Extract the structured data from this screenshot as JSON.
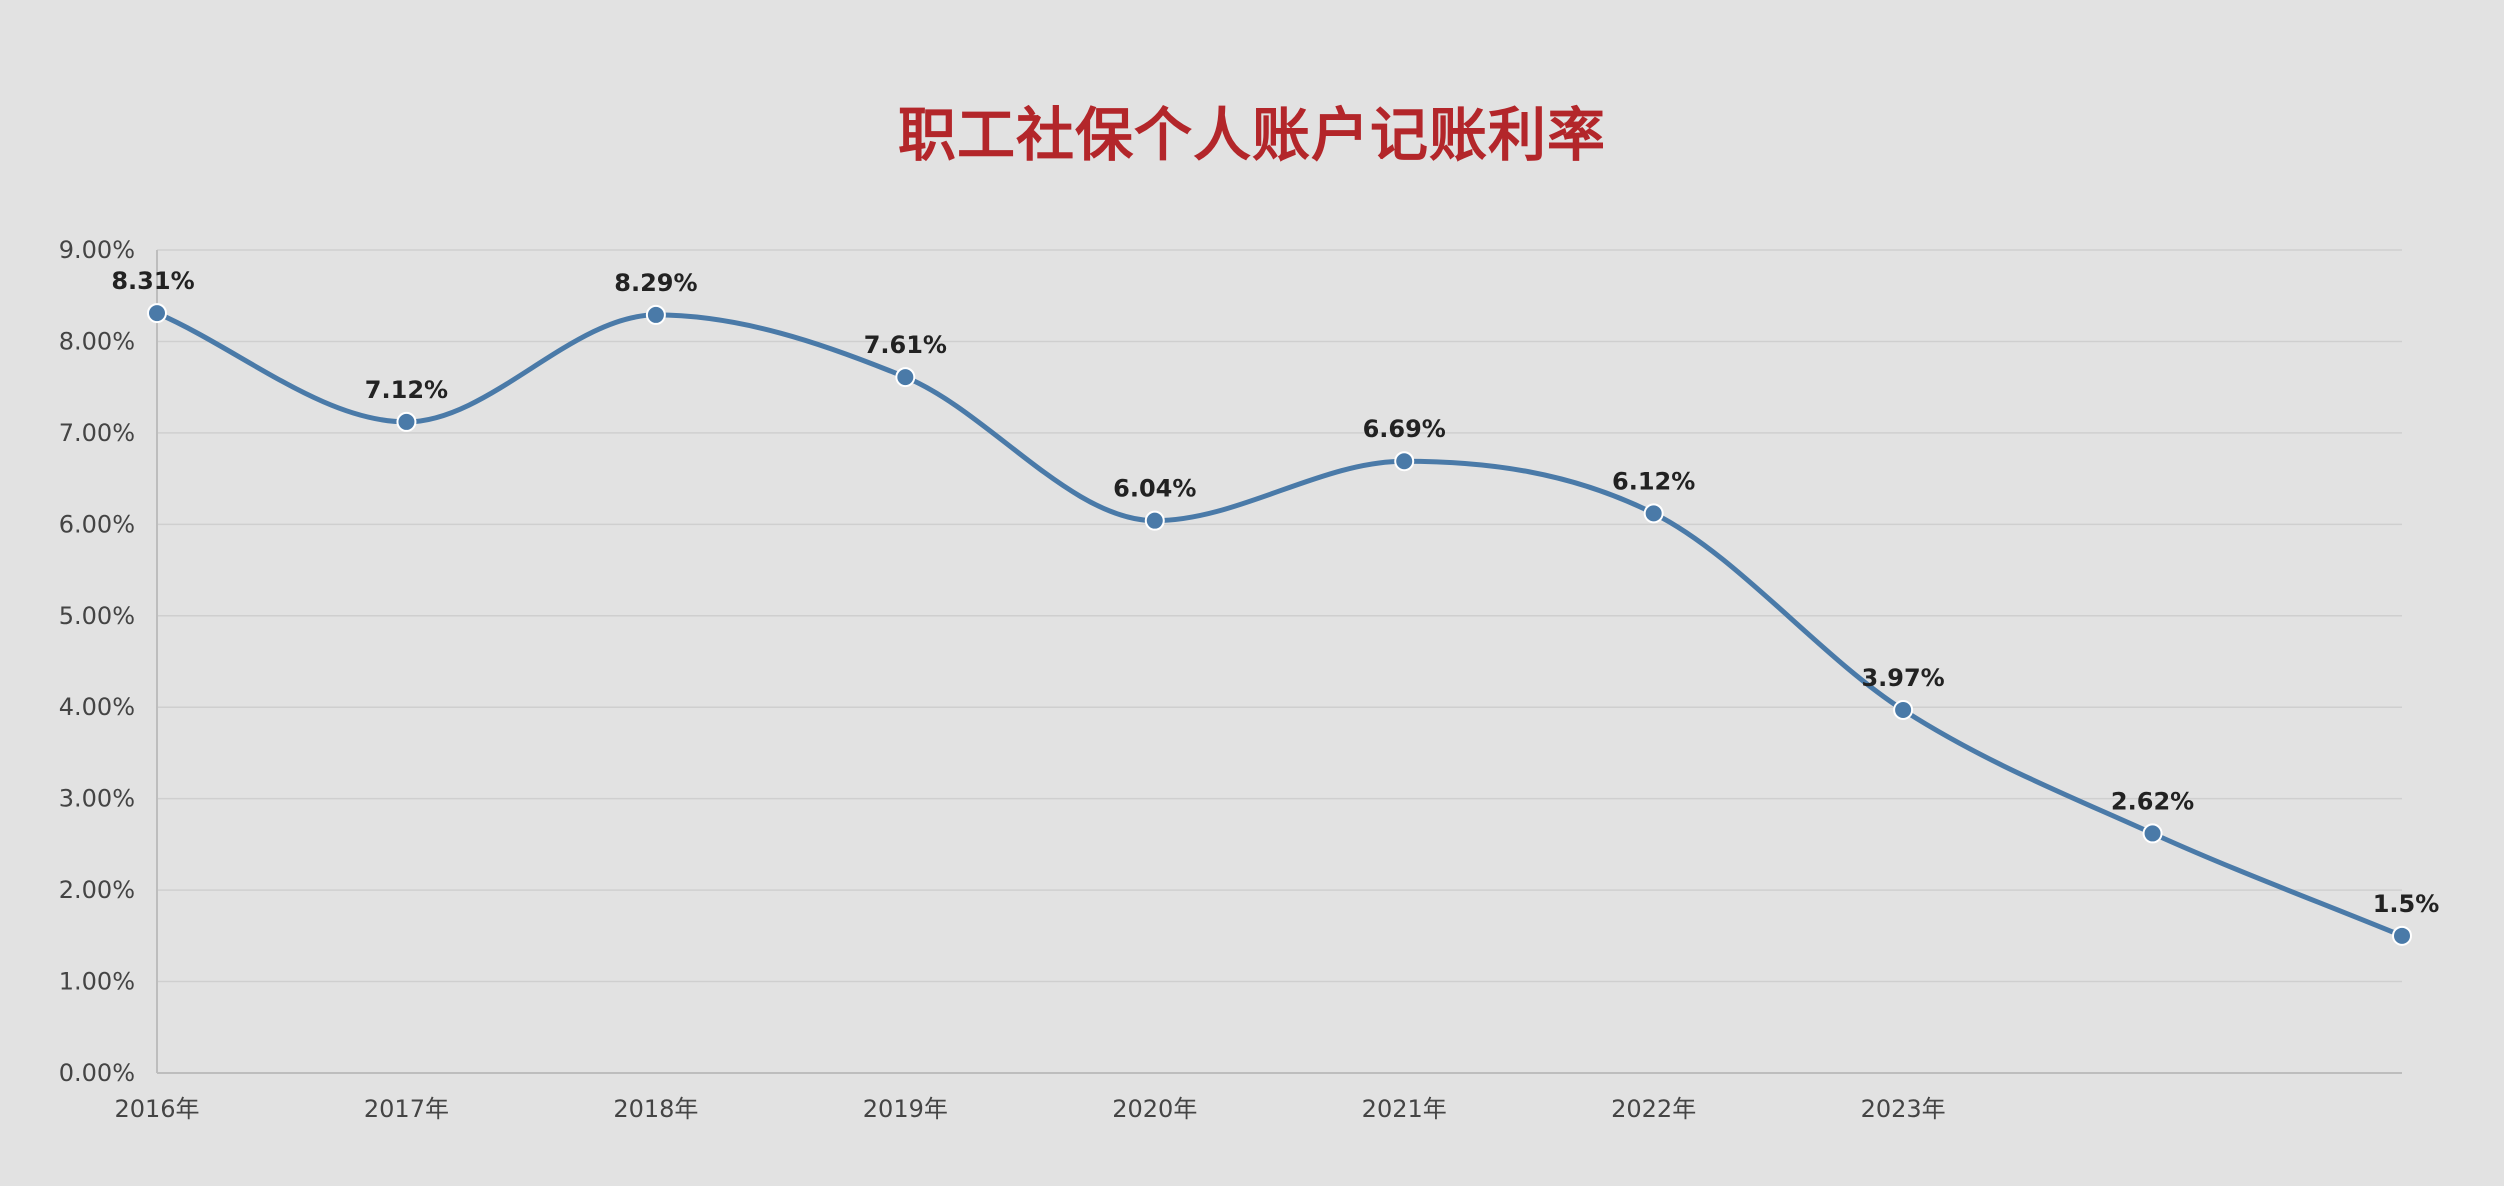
{
  "chart_data": {
    "type": "line",
    "title": "职工社保个人账户记账利率",
    "xlabel": "",
    "ylabel": "",
    "categories": [
      "2016年",
      "2017年",
      "2018年",
      "2019年",
      "2020年",
      "2021年",
      "2022年",
      "2023年",
      "",
      ""
    ],
    "series": [
      {
        "values": [
          8.31,
          7.12,
          8.29,
          7.61,
          6.04,
          6.69,
          6.12,
          3.97,
          2.62,
          1.5
        ],
        "labels": [
          "8.31%",
          "7.12%",
          "8.29%",
          "7.61%",
          "6.04%",
          "6.69%",
          "6.12%",
          "3.97%",
          "2.62%",
          "1.5%"
        ]
      }
    ],
    "ylim": [
      0,
      9
    ],
    "yticks": [
      "0.00%",
      "1.00%",
      "2.00%",
      "3.00%",
      "4.00%",
      "5.00%",
      "6.00%",
      "7.00%",
      "8.00%",
      "9.00%"
    ],
    "grid": true,
    "smooth": true,
    "line_color": "#4a7aa8",
    "marker_color": "#4a7aa8",
    "title_color": "#b3262a"
  }
}
